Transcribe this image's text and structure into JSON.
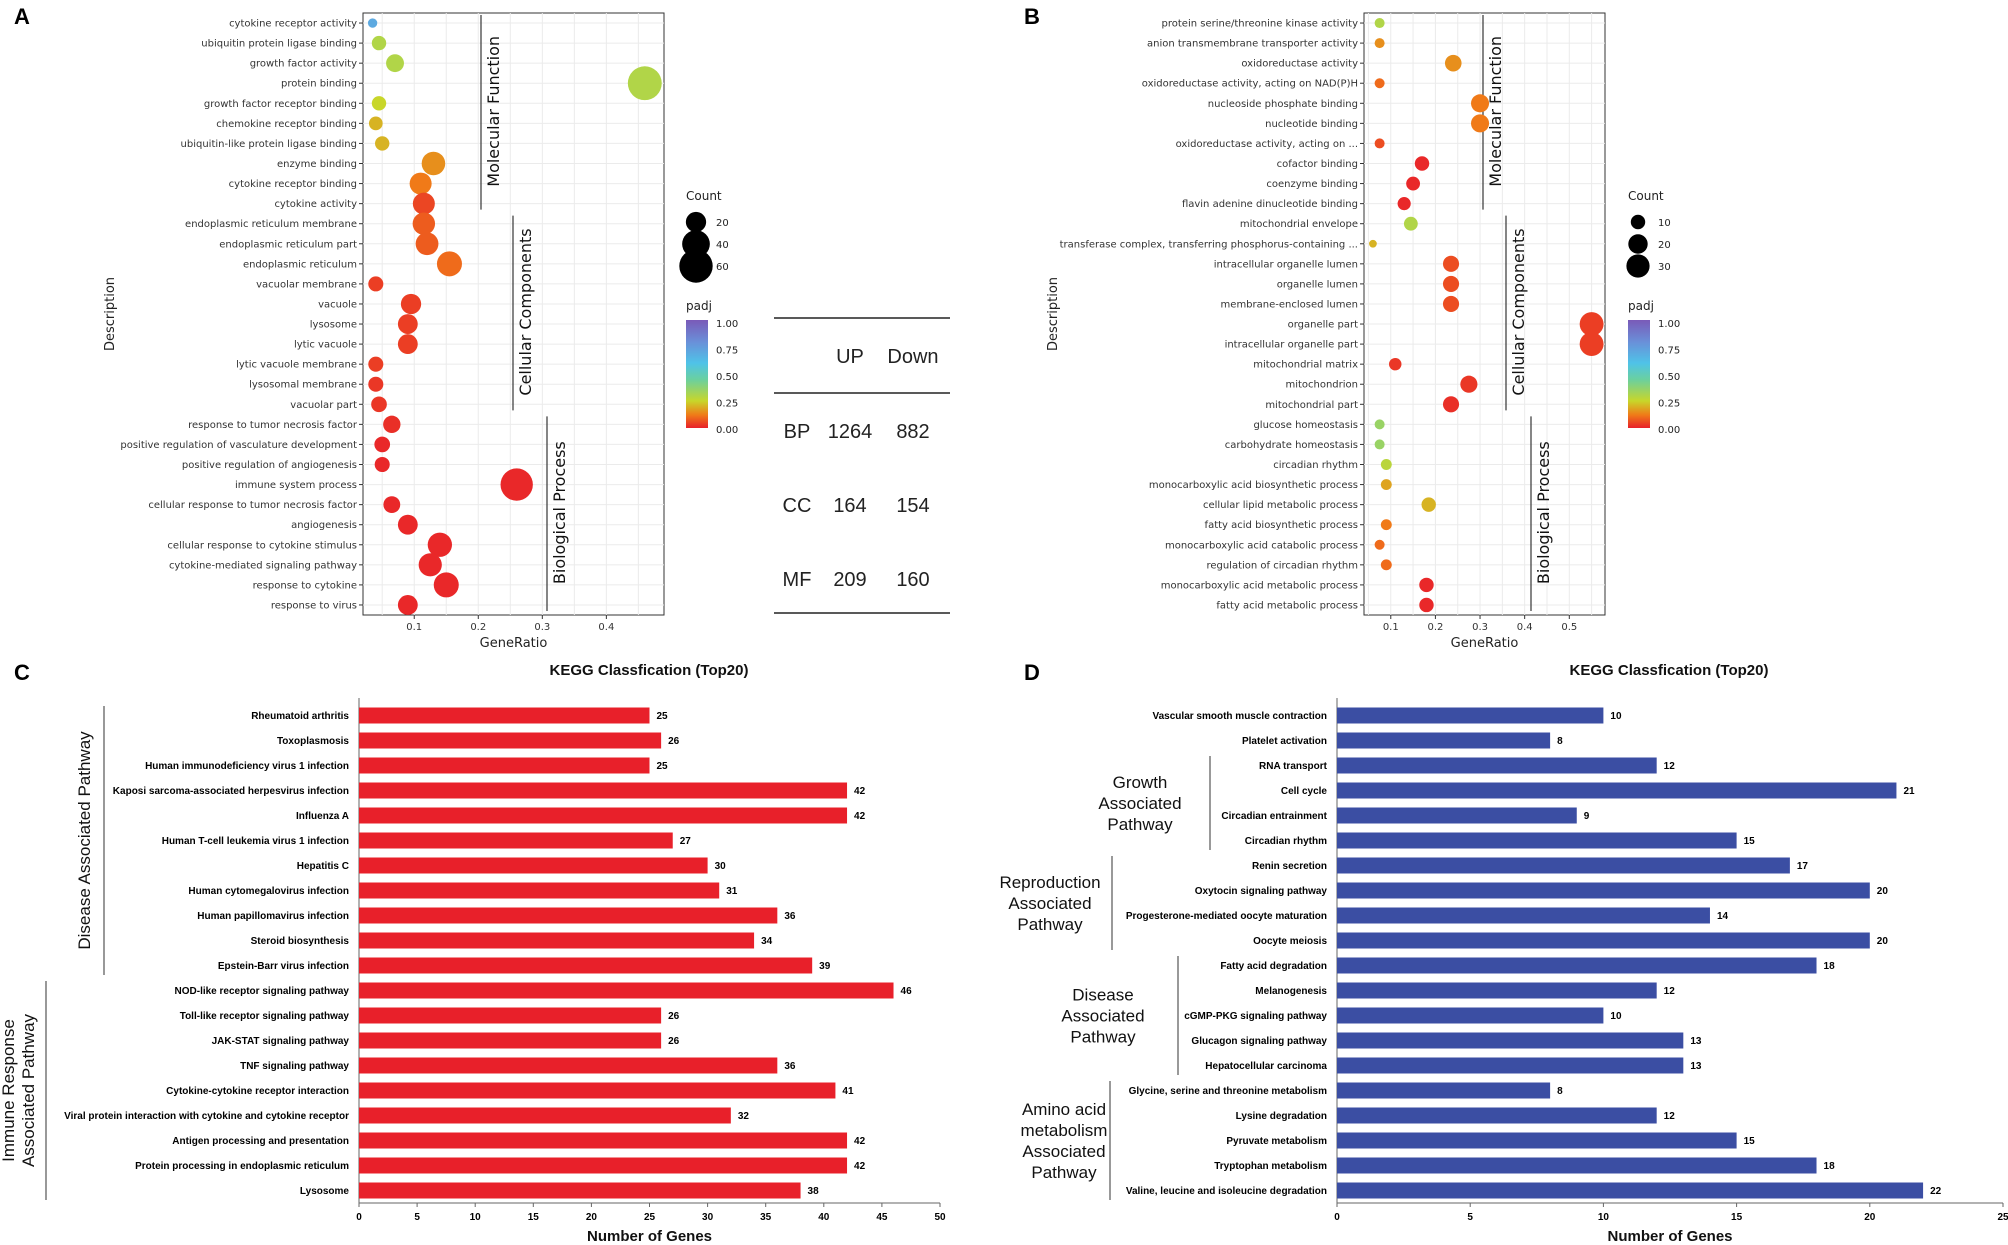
{
  "chart_data": [
    {
      "panel": "A",
      "type": "scatter",
      "xlabel": "GeneRatio",
      "ylabel": "Description",
      "xlim": [
        0.02,
        0.49
      ],
      "xticks": [
        0.1,
        0.2,
        0.3,
        0.4
      ],
      "legend_count": {
        "title": "Count",
        "levels": [
          20,
          40,
          60
        ]
      },
      "legend_padj": {
        "title": "padj",
        "ticks": [
          "1.00",
          "0.75",
          "0.50",
          "0.25",
          "0.00"
        ]
      },
      "groups": [
        {
          "name": "Molecular Function",
          "start": 0,
          "end": 9
        },
        {
          "name": "Cellular Components",
          "start": 10,
          "end": 19
        },
        {
          "name": "Biological Process",
          "start": 20,
          "end": 29
        }
      ],
      "points": [
        {
          "term": "cytokine receptor activity",
          "x": 0.035,
          "count": 3,
          "padj": 0.7
        },
        {
          "term": "ubiquitin protein ligase binding",
          "x": 0.045,
          "count": 9,
          "padj": 0.3
        },
        {
          "term": "growth factor activity",
          "x": 0.07,
          "count": 15,
          "padj": 0.3
        },
        {
          "term": "protein binding",
          "x": 0.46,
          "count": 62,
          "padj": 0.3
        },
        {
          "term": "growth factor receptor binding",
          "x": 0.045,
          "count": 9,
          "padj": 0.25
        },
        {
          "term": "chemokine receptor binding",
          "x": 0.04,
          "count": 8,
          "padj": 0.2
        },
        {
          "term": "ubiquitin-like protein ligase binding",
          "x": 0.05,
          "count": 9,
          "padj": 0.2
        },
        {
          "term": "enzyme binding",
          "x": 0.13,
          "count": 28,
          "padj": 0.15
        },
        {
          "term": "cytokine receptor binding",
          "x": 0.11,
          "count": 24,
          "padj": 0.12
        },
        {
          "term": "cytokine activity",
          "x": 0.115,
          "count": 24,
          "padj": 0.05
        },
        {
          "term": "endoplasmic reticulum membrane",
          "x": 0.115,
          "count": 25,
          "padj": 0.08
        },
        {
          "term": "endoplasmic reticulum part",
          "x": 0.12,
          "count": 26,
          "padj": 0.08
        },
        {
          "term": "endoplasmic reticulum",
          "x": 0.155,
          "count": 32,
          "padj": 0.1
        },
        {
          "term": "vacuolar membrane",
          "x": 0.04,
          "count": 10,
          "padj": 0.04
        },
        {
          "term": "vacuole",
          "x": 0.095,
          "count": 20,
          "padj": 0.04
        },
        {
          "term": "lysosome",
          "x": 0.09,
          "count": 19,
          "padj": 0.04
        },
        {
          "term": "lytic vacuole",
          "x": 0.09,
          "count": 19,
          "padj": 0.04
        },
        {
          "term": "lytic vacuole membrane",
          "x": 0.04,
          "count": 10,
          "padj": 0.04
        },
        {
          "term": "lysosomal membrane",
          "x": 0.04,
          "count": 10,
          "padj": 0.03
        },
        {
          "term": "vacuolar part",
          "x": 0.045,
          "count": 11,
          "padj": 0.03
        },
        {
          "term": "response to tumor necrosis factor",
          "x": 0.065,
          "count": 14,
          "padj": 0.02
        },
        {
          "term": "positive regulation of vasculature development",
          "x": 0.05,
          "count": 11,
          "padj": 0.01
        },
        {
          "term": "positive regulation of angiogenesis",
          "x": 0.05,
          "count": 10,
          "padj": 0.01
        },
        {
          "term": "immune system process",
          "x": 0.26,
          "count": 56,
          "padj": 0.01
        },
        {
          "term": "cellular response to tumor necrosis factor",
          "x": 0.065,
          "count": 13,
          "padj": 0.01
        },
        {
          "term": "angiogenesis",
          "x": 0.09,
          "count": 19,
          "padj": 0.01
        },
        {
          "term": "cellular response to cytokine stimulus",
          "x": 0.14,
          "count": 30,
          "padj": 0.01
        },
        {
          "term": "cytokine-mediated signaling pathway",
          "x": 0.125,
          "count": 27,
          "padj": 0.01
        },
        {
          "term": "response to cytokine",
          "x": 0.15,
          "count": 32,
          "padj": 0.01
        },
        {
          "term": "response to virus",
          "x": 0.09,
          "count": 19,
          "padj": 0.01
        }
      ]
    },
    {
      "panel": "B",
      "type": "scatter",
      "xlabel": "GeneRatio",
      "ylabel": "Description",
      "xlim": [
        0.04,
        0.58
      ],
      "xticks": [
        0.1,
        0.2,
        0.3,
        0.4,
        0.5
      ],
      "legend_count": {
        "title": "Count",
        "levels": [
          10,
          20,
          30
        ]
      },
      "legend_padj": {
        "title": "padj",
        "ticks": [
          "1.00",
          "0.75",
          "0.50",
          "0.25",
          "0.00"
        ]
      },
      "groups": [
        {
          "name": "Molecular Function",
          "start": 0,
          "end": 9
        },
        {
          "name": "Cellular Components",
          "start": 10,
          "end": 19
        },
        {
          "name": "Biological Process",
          "start": 20,
          "end": 29
        }
      ],
      "points": [
        {
          "term": "protein serine/threonine kinase activity",
          "x": 0.075,
          "count": 4,
          "padj": 0.3
        },
        {
          "term": "anion transmembrane transporter activity",
          "x": 0.075,
          "count": 4,
          "padj": 0.15
        },
        {
          "term": "oxidoreductase activity",
          "x": 0.24,
          "count": 14,
          "padj": 0.15
        },
        {
          "term": "oxidoreductase activity, acting on NAD(P)H",
          "x": 0.075,
          "count": 4,
          "padj": 0.1
        },
        {
          "term": "nucleoside phosphate binding",
          "x": 0.3,
          "count": 17,
          "padj": 0.12
        },
        {
          "term": "nucleotide binding",
          "x": 0.3,
          "count": 17,
          "padj": 0.12
        },
        {
          "term": "oxidoreductase activity, acting on ...",
          "x": 0.075,
          "count": 4,
          "padj": 0.06
        },
        {
          "term": "cofactor binding",
          "x": 0.17,
          "count": 10,
          "padj": 0.01
        },
        {
          "term": "coenzyme binding",
          "x": 0.15,
          "count": 9,
          "padj": 0.01
        },
        {
          "term": "flavin adenine dinucleotide binding",
          "x": 0.13,
          "count": 8,
          "padj": 0.01
        },
        {
          "term": "mitochondrial envelope",
          "x": 0.145,
          "count": 9,
          "padj": 0.3
        },
        {
          "term": "transferase complex, transferring phosphorus-containing ...",
          "x": 0.06,
          "count": 2,
          "padj": 0.2
        },
        {
          "term": "intracellular organelle lumen",
          "x": 0.235,
          "count": 13,
          "padj": 0.06
        },
        {
          "term": "organelle lumen",
          "x": 0.235,
          "count": 13,
          "padj": 0.06
        },
        {
          "term": "membrane-enclosed lumen",
          "x": 0.235,
          "count": 13,
          "padj": 0.06
        },
        {
          "term": "organelle part",
          "x": 0.55,
          "count": 32,
          "padj": 0.04
        },
        {
          "term": "intracellular organelle part",
          "x": 0.55,
          "count": 32,
          "padj": 0.04
        },
        {
          "term": "mitochondrial matrix",
          "x": 0.11,
          "count": 7,
          "padj": 0.03
        },
        {
          "term": "mitochondrion",
          "x": 0.275,
          "count": 15,
          "padj": 0.03
        },
        {
          "term": "mitochondrial part",
          "x": 0.235,
          "count": 13,
          "padj": 0.02
        },
        {
          "term": "glucose homeostasis",
          "x": 0.075,
          "count": 4,
          "padj": 0.35
        },
        {
          "term": "carbohydrate homeostasis",
          "x": 0.075,
          "count": 4,
          "padj": 0.35
        },
        {
          "term": "circadian rhythm",
          "x": 0.09,
          "count": 5,
          "padj": 0.28
        },
        {
          "term": "monocarboxylic acid biosynthetic process",
          "x": 0.09,
          "count": 5,
          "padj": 0.18
        },
        {
          "term": "cellular lipid metabolic process",
          "x": 0.185,
          "count": 10,
          "padj": 0.2
        },
        {
          "term": "fatty acid biosynthetic process",
          "x": 0.09,
          "count": 5,
          "padj": 0.12
        },
        {
          "term": "monocarboxylic acid catabolic process",
          "x": 0.075,
          "count": 4,
          "padj": 0.1
        },
        {
          "term": "regulation of circadian rhythm",
          "x": 0.09,
          "count": 5,
          "padj": 0.1
        },
        {
          "term": "monocarboxylic acid metabolic process",
          "x": 0.18,
          "count": 10,
          "padj": 0.01
        },
        {
          "term": "fatty acid metabolic process",
          "x": 0.18,
          "count": 10,
          "padj": 0.01
        }
      ]
    },
    {
      "panel": "C",
      "type": "bar",
      "title": "KEGG Classfication (Top20)",
      "xlabel": "Number of Genes",
      "xlim": [
        0,
        50
      ],
      "xticks": [
        0,
        5,
        10,
        15,
        20,
        25,
        30,
        35,
        40,
        45,
        50
      ],
      "color": "#e8202a",
      "categories": [
        "Rheumatoid arthritis",
        "Toxoplasmosis",
        "Human immunodeficiency virus 1 infection",
        "Kaposi sarcoma-associated herpesvirus infection",
        "Influenza A",
        "Human T-cell leukemia virus 1 infection",
        "Hepatitis C",
        "Human cytomegalovirus infection",
        "Human papillomavirus infection",
        "Steroid biosynthesis",
        "Epstein-Barr virus infection",
        "NOD-like receptor signaling pathway",
        "Toll-like receptor signaling pathway",
        "JAK-STAT signaling pathway",
        "TNF signaling pathway",
        "Cytokine-cytokine receptor interaction",
        "Viral protein interaction with cytokine and cytokine receptor",
        "Antigen processing and presentation",
        "Protein processing in endoplasmic reticulum",
        "Lysosome"
      ],
      "values": [
        25,
        26,
        25,
        42,
        42,
        27,
        30,
        31,
        36,
        34,
        39,
        46,
        26,
        26,
        36,
        41,
        32,
        42,
        42,
        38
      ],
      "groups": [
        {
          "name": "Disease Associated Pathway",
          "start": 0,
          "end": 10
        },
        {
          "name": "Immune Response Associated Pathway",
          "start": 11,
          "end": 19
        }
      ]
    },
    {
      "panel": "D",
      "type": "bar",
      "title": "KEGG Classfication (Top20)",
      "xlabel": "Number of Genes",
      "xlim": [
        0,
        25
      ],
      "xticks": [
        0,
        5,
        10,
        15,
        20,
        25
      ],
      "color": "#3b4ea3",
      "categories": [
        "Vascular smooth muscle contraction",
        "Platelet activation",
        "RNA transport",
        "Cell cycle",
        "Circadian entrainment",
        "Circadian rhythm",
        "Renin secretion",
        "Oxytocin signaling pathway",
        "Progesterone-mediated oocyte maturation",
        "Oocyte meiosis",
        "Fatty acid degradation",
        "Melanogenesis",
        "cGMP-PKG signaling pathway",
        "Glucagon signaling pathway",
        "Hepatocellular carcinoma",
        "Glycine, serine and threonine metabolism",
        "Lysine degradation",
        "Pyruvate metabolism",
        "Tryptophan metabolism",
        "Valine, leucine and isoleucine degradation"
      ],
      "values": [
        10,
        8,
        12,
        21,
        9,
        15,
        17,
        20,
        14,
        20,
        18,
        12,
        10,
        13,
        13,
        8,
        12,
        15,
        18,
        22
      ],
      "groups": [
        {
          "name": "Growth Associated Pathway",
          "start": 2,
          "end": 5
        },
        {
          "name": "Reproduction Associated Pathway",
          "start": 6,
          "end": 9
        },
        {
          "name": "Disease Associated Pathway",
          "start": 10,
          "end": 14
        },
        {
          "name": "Amino acid metabolism Associated Pathway",
          "start": 15,
          "end": 19
        }
      ]
    }
  ],
  "table": {
    "headers": [
      "",
      "UP",
      "Down"
    ],
    "rows": [
      {
        "label": "BP",
        "up": "1264",
        "down": "882"
      },
      {
        "label": "CC",
        "up": "164",
        "down": "154"
      },
      {
        "label": "MF",
        "up": "209",
        "down": "160"
      }
    ]
  },
  "panel_labels": [
    "A",
    "B",
    "C",
    "D"
  ]
}
